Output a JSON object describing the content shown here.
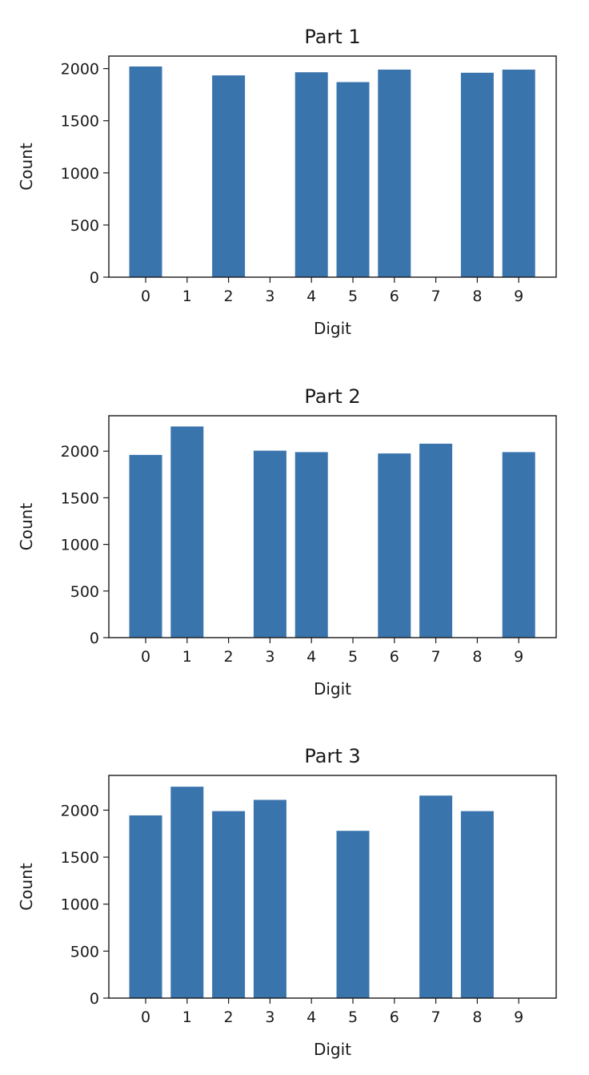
{
  "chart_data": [
    {
      "type": "bar",
      "title": "Part 1",
      "xlabel": "Digit",
      "ylabel": "Count",
      "categories": [
        "0",
        "1",
        "2",
        "3",
        "4",
        "5",
        "6",
        "7",
        "8",
        "9"
      ],
      "values": [
        2020,
        0,
        1935,
        0,
        1965,
        1870,
        1990,
        0,
        1960,
        1990
      ],
      "ylim": [
        0,
        2120
      ],
      "yticks": [
        0,
        500,
        1000,
        1500,
        2000
      ],
      "grid": false,
      "color": "#3a74ad"
    },
    {
      "type": "bar",
      "title": "Part 2",
      "xlabel": "Digit",
      "ylabel": "Count",
      "categories": [
        "0",
        "1",
        "2",
        "3",
        "4",
        "5",
        "6",
        "7",
        "8",
        "9"
      ],
      "values": [
        1960,
        2265,
        0,
        2005,
        1990,
        0,
        1975,
        2080,
        0,
        1990
      ],
      "ylim": [
        0,
        2380
      ],
      "yticks": [
        0,
        500,
        1000,
        1500,
        2000
      ],
      "grid": false,
      "color": "#3a74ad"
    },
    {
      "type": "bar",
      "title": "Part 3",
      "xlabel": "Digit",
      "ylabel": "Count",
      "categories": [
        "0",
        "1",
        "2",
        "3",
        "4",
        "5",
        "6",
        "7",
        "8",
        "9"
      ],
      "values": [
        1945,
        2250,
        1990,
        2110,
        0,
        1780,
        0,
        2155,
        1990,
        0
      ],
      "ylim": [
        0,
        2370
      ],
      "yticks": [
        0,
        500,
        1000,
        1500,
        2000
      ],
      "grid": false,
      "color": "#3a74ad"
    }
  ]
}
